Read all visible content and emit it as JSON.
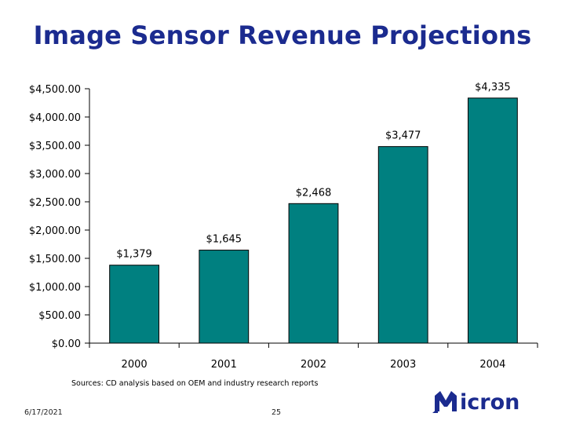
{
  "title": "Image Sensor Revenue Projections",
  "source_note": "Sources: CD analysis based on OEM and industry research reports",
  "footer": {
    "date": "6/17/2021",
    "page": "25"
  },
  "logo_text": "Micron",
  "colors": {
    "bar": "#008080",
    "title": "#1b2b8f",
    "logo": "#1b2b8f"
  },
  "chart_data": {
    "type": "bar",
    "categories": [
      "2000",
      "2001",
      "2002",
      "2003",
      "2004"
    ],
    "values": [
      1379,
      1645,
      2468,
      3477,
      4335
    ],
    "value_labels": [
      "$1,379",
      "$1,645",
      "$2,468",
      "$3,477",
      "$4,335"
    ],
    "ylim": [
      0,
      4500
    ],
    "yticks": [
      0,
      500,
      1000,
      1500,
      2000,
      2500,
      3000,
      3500,
      4000,
      4500
    ],
    "ytick_labels": [
      "$0.00",
      "$500.00",
      "$1,000.00",
      "$1,500.00",
      "$2,000.00",
      "$2,500.00",
      "$3,000.00",
      "$3,500.00",
      "$4,000.00",
      "$4,500.00"
    ],
    "xlabel": "",
    "ylabel": "",
    "grid": false,
    "legend": "none"
  }
}
